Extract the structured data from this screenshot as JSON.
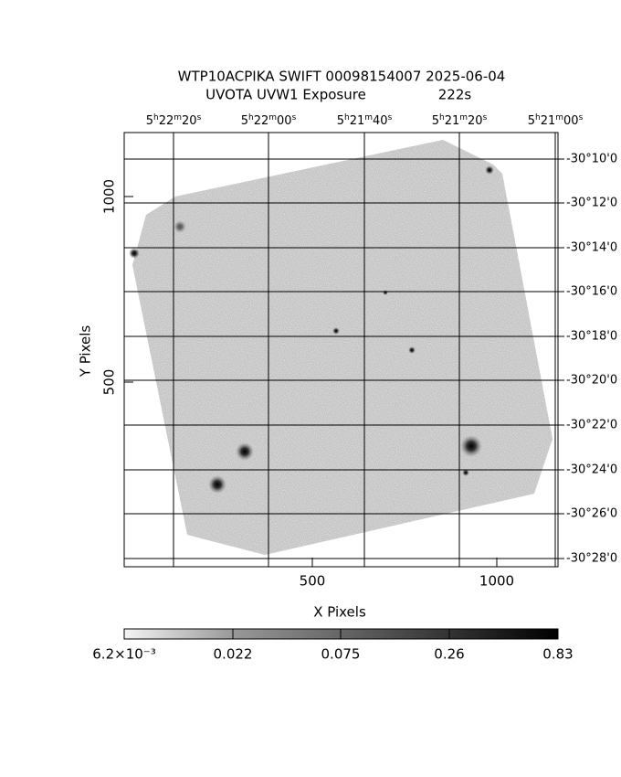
{
  "header": {
    "title": "WTP10ACPIKA SWIFT 00098154007 2025-06-04",
    "instrument": "UVOTA UVW1 Exposure",
    "exposure": "222s"
  },
  "top_ticks": [
    "5h22m20s",
    "5h22m00s",
    "5h21m40s",
    "5h21m20s",
    "5h21m00s"
  ],
  "right_ticks": [
    "-30°10'0",
    "-30°12'0",
    "-30°14'0",
    "-30°16'0",
    "-30°18'0",
    "-30°20'0",
    "-30°22'0",
    "-30°24'0",
    "-30°26'0",
    "-30°28'0"
  ],
  "left_ticks": [
    "1000",
    "500"
  ],
  "bottom_ticks": [
    "500",
    "1000"
  ],
  "x_label": "X Pixels",
  "y_label": "Y Pixels",
  "colorbar_ticks": [
    "6.2×10⁻³",
    "0.022",
    "0.075",
    "0.26",
    "0.83"
  ]
}
